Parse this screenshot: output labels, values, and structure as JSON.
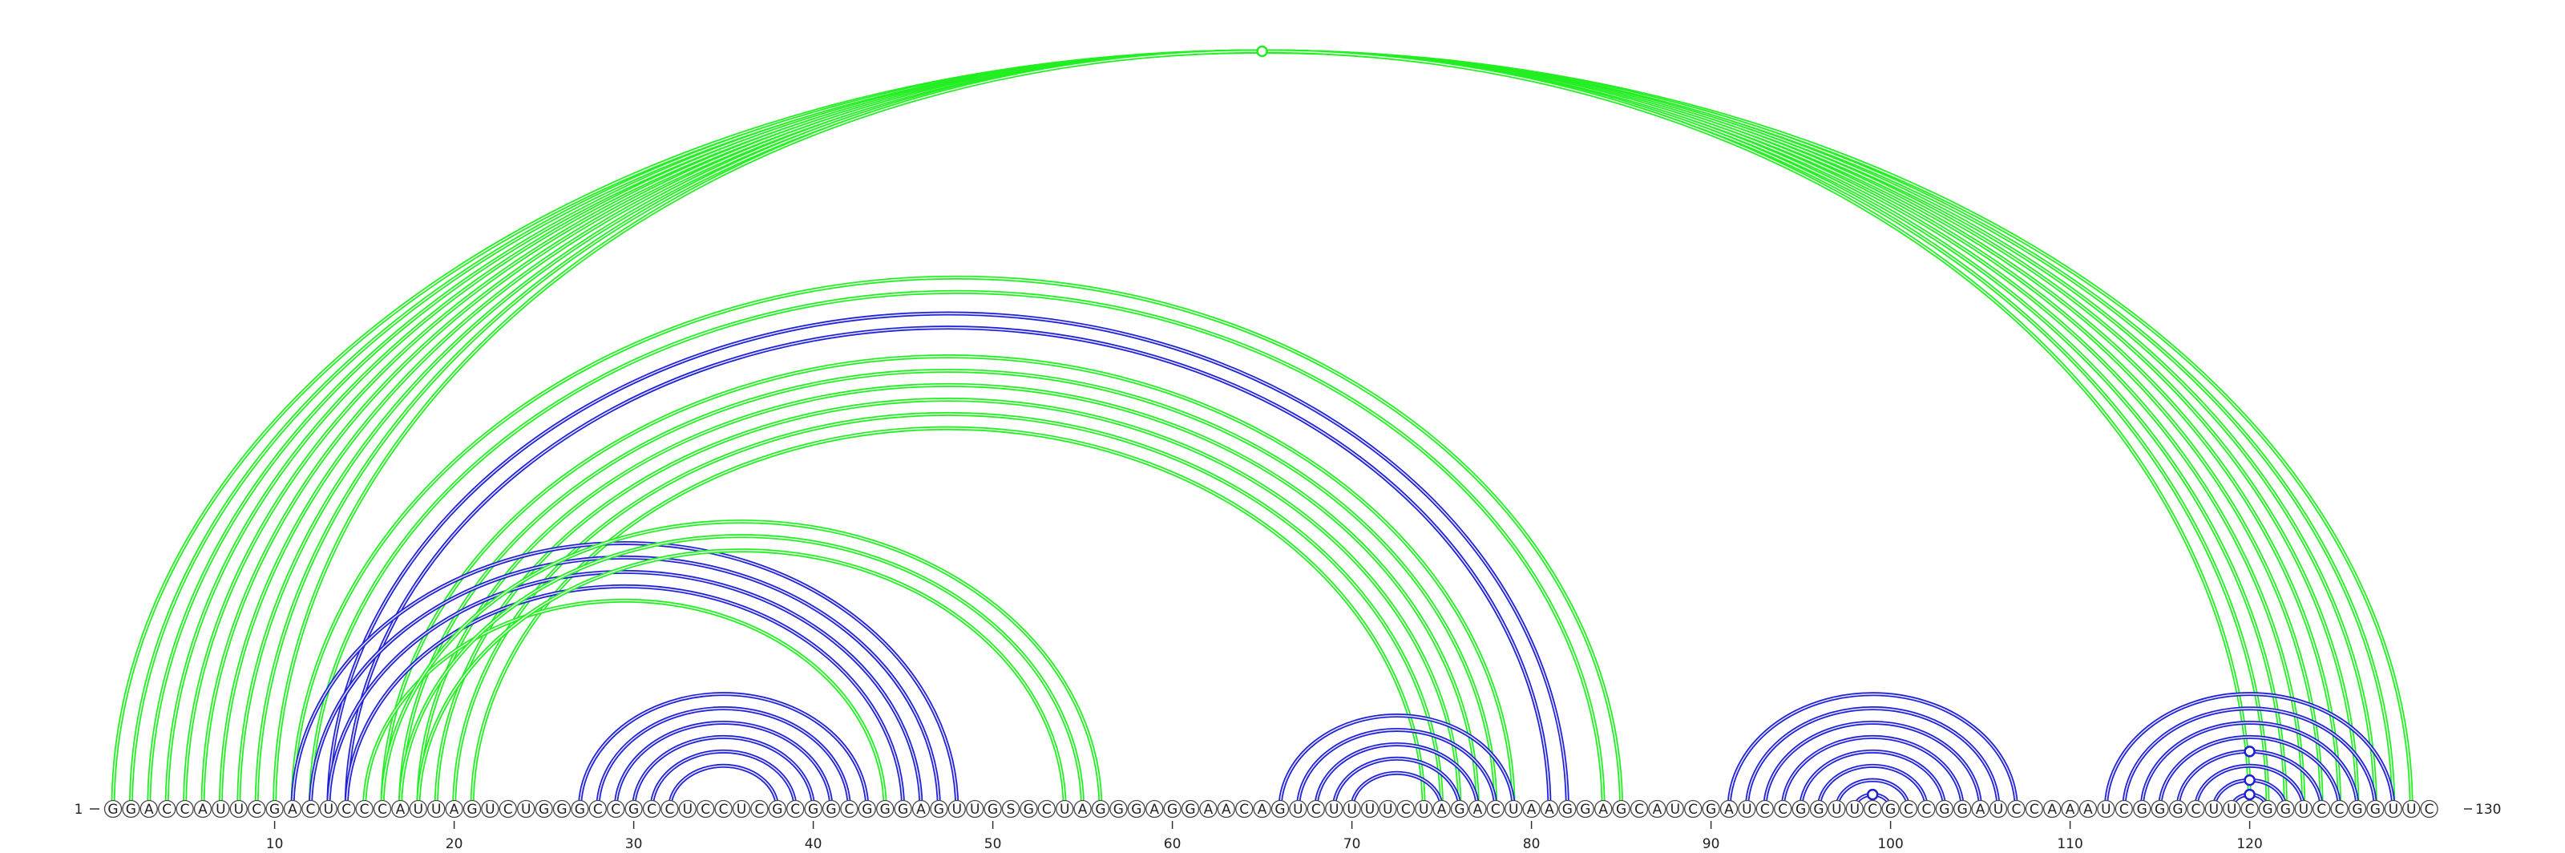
{
  "sequence": {
    "start_label": "1",
    "end_label": "130",
    "bases": "GGACCAUUCGACUCCCAUUAGUCUGGGCCGCCUCCUCGCGGCGGGAGUUGSGCUAGGGAGGAACAGUCUUUUCUAGACUAAGGAGCAUCGAUCCGGUUCGCCGGAUCCAAAUCGGGCUUCGGUCCGGUUC"
  },
  "ticks": [
    "10",
    "20",
    "30",
    "40",
    "50",
    "60",
    "70",
    "80",
    "90",
    "100",
    "110",
    "120"
  ],
  "colors": {
    "green": "#22ee22",
    "blue": "#1f1fd6"
  },
  "chart_data": {
    "type": "arc-diagram",
    "x_range": [
      1,
      130
    ],
    "arcs": [
      {
        "i": 1,
        "j": 129,
        "color": "green"
      },
      {
        "i": 2,
        "j": 128,
        "color": "green"
      },
      {
        "i": 3,
        "j": 127,
        "color": "green"
      },
      {
        "i": 4,
        "j": 126,
        "color": "green"
      },
      {
        "i": 5,
        "j": 125,
        "color": "green"
      },
      {
        "i": 6,
        "j": 124,
        "color": "green"
      },
      {
        "i": 7,
        "j": 123,
        "color": "green"
      },
      {
        "i": 8,
        "j": 122,
        "color": "green"
      },
      {
        "i": 9,
        "j": 121,
        "color": "green"
      },
      {
        "i": 10,
        "j": 120,
        "color": "green"
      },
      {
        "i": 13,
        "j": 82,
        "color": "blue"
      },
      {
        "i": 14,
        "j": 81,
        "color": "blue"
      },
      {
        "i": 12,
        "j": 84,
        "color": "green"
      },
      {
        "i": 11,
        "j": 85,
        "color": "green"
      },
      {
        "i": 16,
        "j": 79,
        "color": "green"
      },
      {
        "i": 17,
        "j": 78,
        "color": "green"
      },
      {
        "i": 18,
        "j": 77,
        "color": "green"
      },
      {
        "i": 19,
        "j": 76,
        "color": "green"
      },
      {
        "i": 20,
        "j": 75,
        "color": "green"
      },
      {
        "i": 21,
        "j": 74,
        "color": "green"
      },
      {
        "i": 11,
        "j": 48,
        "color": "blue"
      },
      {
        "i": 12,
        "j": 47,
        "color": "blue"
      },
      {
        "i": 13,
        "j": 46,
        "color": "blue"
      },
      {
        "i": 14,
        "j": 45,
        "color": "blue"
      },
      {
        "i": 15,
        "j": 44,
        "color": "green"
      },
      {
        "i": 16,
        "j": 56,
        "color": "green"
      },
      {
        "i": 17,
        "j": 55,
        "color": "green"
      },
      {
        "i": 18,
        "j": 54,
        "color": "green"
      },
      {
        "i": 27,
        "j": 43,
        "color": "blue"
      },
      {
        "i": 28,
        "j": 42,
        "color": "blue"
      },
      {
        "i": 29,
        "j": 41,
        "color": "blue"
      },
      {
        "i": 30,
        "j": 40,
        "color": "blue"
      },
      {
        "i": 31,
        "j": 39,
        "color": "blue"
      },
      {
        "i": 32,
        "j": 38,
        "color": "blue"
      },
      {
        "i": 66,
        "j": 79,
        "color": "blue"
      },
      {
        "i": 67,
        "j": 78,
        "color": "blue"
      },
      {
        "i": 68,
        "j": 77,
        "color": "blue"
      },
      {
        "i": 69,
        "j": 76,
        "color": "blue"
      },
      {
        "i": 70,
        "j": 75,
        "color": "blue"
      },
      {
        "i": 91,
        "j": 107,
        "color": "blue"
      },
      {
        "i": 92,
        "j": 106,
        "color": "blue"
      },
      {
        "i": 93,
        "j": 105,
        "color": "blue"
      },
      {
        "i": 94,
        "j": 104,
        "color": "blue"
      },
      {
        "i": 95,
        "j": 103,
        "color": "blue"
      },
      {
        "i": 96,
        "j": 102,
        "color": "blue"
      },
      {
        "i": 97,
        "j": 101,
        "color": "blue"
      },
      {
        "i": 98,
        "j": 100,
        "color": "blue"
      },
      {
        "i": 112,
        "j": 128,
        "color": "blue"
      },
      {
        "i": 113,
        "j": 127,
        "color": "blue"
      },
      {
        "i": 114,
        "j": 126,
        "color": "blue"
      },
      {
        "i": 115,
        "j": 125,
        "color": "blue"
      },
      {
        "i": 116,
        "j": 124,
        "color": "blue"
      },
      {
        "i": 117,
        "j": 123,
        "color": "blue"
      },
      {
        "i": 118,
        "j": 122,
        "color": "blue"
      },
      {
        "i": 119,
        "j": 121,
        "color": "blue"
      }
    ],
    "markers": [
      {
        "i": 1,
        "j": 129,
        "color": "green"
      },
      {
        "i": 98,
        "j": 100,
        "color": "blue"
      },
      {
        "i": 119,
        "j": 121,
        "color": "blue"
      },
      {
        "i": 118,
        "j": 122,
        "color": "blue"
      },
      {
        "i": 116,
        "j": 124,
        "color": "blue"
      }
    ]
  }
}
